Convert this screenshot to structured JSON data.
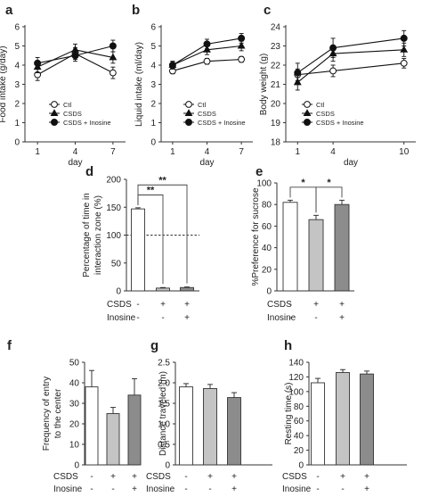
{
  "chart_data": [
    {
      "id": "a",
      "type": "line",
      "panel_label": "a",
      "xlabel": "day",
      "ylabel": "Food intake (g/day)",
      "x": [
        1,
        4,
        7
      ],
      "x_ticks": [
        "1",
        "4",
        "7"
      ],
      "ylim": [
        0,
        6
      ],
      "y_ticks": [
        "0",
        "1",
        "2",
        "3",
        "4",
        "5",
        "6"
      ],
      "series": [
        {
          "name": "Ctl",
          "marker": "open-circle",
          "values": [
            3.5,
            4.6,
            3.6
          ],
          "errors": [
            0.3,
            0.3,
            0.3
          ]
        },
        {
          "name": "CSDS",
          "marker": "triangle",
          "values": [
            3.9,
            4.8,
            4.4
          ],
          "errors": [
            0.3,
            0.3,
            0.3
          ]
        },
        {
          "name": "CSDS + Inosine",
          "marker": "filled-circle",
          "values": [
            4.1,
            4.5,
            5.0
          ],
          "errors": [
            0.3,
            0.3,
            0.3
          ]
        }
      ]
    },
    {
      "id": "b",
      "type": "line",
      "panel_label": "b",
      "xlabel": "day",
      "ylabel": "Liquid intake (ml/day)",
      "x": [
        1,
        4,
        7
      ],
      "x_ticks": [
        "1",
        "4",
        "7"
      ],
      "ylim": [
        0,
        6
      ],
      "y_ticks": [
        "0",
        "1",
        "2",
        "3",
        "4",
        "5",
        "6"
      ],
      "series": [
        {
          "name": "Ctl",
          "marker": "open-circle",
          "values": [
            3.7,
            4.2,
            4.3
          ],
          "errors": [
            0.15,
            0.15,
            0.15
          ]
        },
        {
          "name": "CSDS",
          "marker": "triangle",
          "values": [
            4.0,
            4.8,
            5.0
          ],
          "errors": [
            0.2,
            0.25,
            0.25
          ]
        },
        {
          "name": "CSDS + Inosine",
          "marker": "filled-circle",
          "values": [
            4.0,
            5.1,
            5.4
          ],
          "errors": [
            0.2,
            0.25,
            0.25
          ]
        }
      ]
    },
    {
      "id": "c",
      "type": "line",
      "panel_label": "c",
      "xlabel": "day",
      "ylabel": "Body weight (g)",
      "x": [
        1,
        4,
        10
      ],
      "x_ticks": [
        "1",
        "4",
        "10"
      ],
      "ylim": [
        18,
        24
      ],
      "y_ticks": [
        "18",
        "19",
        "20",
        "21",
        "22",
        "23",
        "24"
      ],
      "series": [
        {
          "name": "Ctl",
          "marker": "open-circle",
          "values": [
            21.5,
            21.7,
            22.1
          ],
          "errors": [
            0.3,
            0.3,
            0.25
          ]
        },
        {
          "name": "CSDS",
          "marker": "triangle",
          "values": [
            21.1,
            22.6,
            22.8
          ],
          "errors": [
            0.4,
            0.4,
            0.35
          ]
        },
        {
          "name": "CSDS + Inosine",
          "marker": "filled-circle",
          "values": [
            21.6,
            22.9,
            23.4
          ],
          "errors": [
            0.5,
            0.5,
            0.4
          ]
        }
      ]
    },
    {
      "id": "d",
      "type": "bar",
      "panel_label": "d",
      "ylabel_lines": [
        "Percentage of time in",
        "interaction zone (%)"
      ],
      "categories": [
        "Ctl",
        "CSDS",
        "CSDS + Inosine"
      ],
      "values": [
        147,
        5,
        6
      ],
      "errors": [
        2,
        1,
        1
      ],
      "bar_colors": [
        "#ffffff",
        "#c4c4c4",
        "#8c8c8c"
      ],
      "ylim": [
        0,
        200
      ],
      "y_ticks": [
        "0",
        "50",
        "100",
        "150",
        "200"
      ],
      "reference_line": 100,
      "significance": [
        {
          "from": 0,
          "to": 1,
          "label": "**"
        },
        {
          "from": 0,
          "to": 2,
          "label": "**"
        }
      ],
      "conditions": [
        {
          "label": "CSDS",
          "marks": [
            "-",
            "+",
            "+"
          ]
        },
        {
          "label": "Inosine",
          "marks": [
            "-",
            "-",
            "+"
          ]
        }
      ]
    },
    {
      "id": "e",
      "type": "bar",
      "panel_label": "e",
      "ylabel_lines": [
        "%Preference for sucrose"
      ],
      "categories": [
        "Ctl",
        "CSDS",
        "CSDS + Inosine"
      ],
      "values": [
        82,
        66,
        80
      ],
      "errors": [
        2,
        4,
        4
      ],
      "bar_colors": [
        "#ffffff",
        "#c4c4c4",
        "#8c8c8c"
      ],
      "ylim": [
        0,
        100
      ],
      "y_ticks": [
        "0",
        "20",
        "40",
        "60",
        "80",
        "100"
      ],
      "significance": [
        {
          "from": 0,
          "to": 1,
          "label": "*"
        },
        {
          "from": 1,
          "to": 2,
          "label": "*"
        }
      ],
      "conditions": [
        {
          "label": "CSDS",
          "marks": [
            "-",
            "+",
            "+"
          ]
        },
        {
          "label": "Inosine",
          "marks": [
            "-",
            "-",
            "+"
          ]
        }
      ]
    },
    {
      "id": "f",
      "type": "bar",
      "panel_label": "f",
      "ylabel_lines": [
        "Frequency of entry",
        "to the center"
      ],
      "categories": [
        "Ctl",
        "CSDS",
        "CSDS + Inosine"
      ],
      "values": [
        38,
        25,
        34
      ],
      "errors": [
        8,
        3,
        8
      ],
      "bar_colors": [
        "#ffffff",
        "#c4c4c4",
        "#8c8c8c"
      ],
      "ylim": [
        0,
        50
      ],
      "y_ticks": [
        "0",
        "10",
        "20",
        "30",
        "40",
        "50"
      ],
      "conditions": [
        {
          "label": "CSDS",
          "marks": [
            "-",
            "+",
            "+"
          ]
        },
        {
          "label": "Inosine",
          "marks": [
            "-",
            "-",
            "+"
          ]
        }
      ]
    },
    {
      "id": "g",
      "type": "bar",
      "panel_label": "g",
      "ylabel_lines": [
        "Distance traveled (m)"
      ],
      "categories": [
        "Ctl",
        "CSDS",
        "CSDS + Inosine"
      ],
      "values": [
        1.9,
        1.86,
        1.64
      ],
      "errors": [
        0.08,
        0.1,
        0.12
      ],
      "bar_colors": [
        "#ffffff",
        "#c4c4c4",
        "#8c8c8c"
      ],
      "ylim": [
        0,
        2.5
      ],
      "y_ticks": [
        "0",
        "0.5",
        "1.0",
        "1.5",
        "2.0",
        "2.5"
      ],
      "conditions": [
        {
          "label": "CSDS",
          "marks": [
            "-",
            "+",
            "+"
          ]
        },
        {
          "label": "Inosine",
          "marks": [
            "-",
            "-",
            "+"
          ]
        }
      ]
    },
    {
      "id": "h",
      "type": "bar",
      "panel_label": "h",
      "ylabel_lines": [
        "Resting time (s)"
      ],
      "categories": [
        "Ctl",
        "CSDS",
        "CSDS + Inosine"
      ],
      "values": [
        112,
        126,
        124
      ],
      "errors": [
        6,
        4,
        4
      ],
      "bar_colors": [
        "#ffffff",
        "#c4c4c4",
        "#8c8c8c"
      ],
      "ylim": [
        0,
        140
      ],
      "y_ticks": [
        "0",
        "20",
        "40",
        "60",
        "80",
        "100",
        "120",
        "140"
      ],
      "conditions": [
        {
          "label": "CSDS",
          "marks": [
            "-",
            "+",
            "+"
          ]
        },
        {
          "label": "Inosine",
          "marks": [
            "-",
            "-",
            "+"
          ]
        }
      ]
    }
  ]
}
